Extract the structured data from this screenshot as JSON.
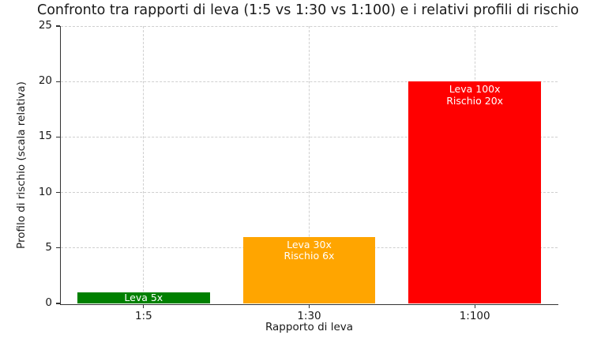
{
  "chart_data": {
    "type": "bar",
    "title": "Confronto tra rapporti di leva (1:5 vs 1:30 vs 1:100) e i relativi profili di rischio",
    "xlabel": "Rapporto di leva",
    "ylabel": "Profilo di rischio (scala relativa)",
    "categories": [
      "1:5",
      "1:30",
      "1:100"
    ],
    "values": [
      1,
      6,
      20
    ],
    "bar_labels": [
      [
        "Leva 5x"
      ],
      [
        "Leva 30x",
        "Rischio 6x"
      ],
      [
        "Leva 100x",
        "Rischio 20x"
      ]
    ],
    "bar_colors": [
      "#008000",
      "#FFA500",
      "#FF0000"
    ],
    "bar_label_color": "#ffffff",
    "ylim": [
      0,
      25
    ],
    "yticks": [
      0,
      5,
      10,
      15,
      20,
      25
    ],
    "bar_width_fraction": 0.8,
    "grid": "dashed, both axes",
    "grid_color": "#cfcfcf",
    "axis_color": "#333333",
    "text_color": "#1a1a1a",
    "background_color": "#ffffff",
    "legend": "none"
  }
}
